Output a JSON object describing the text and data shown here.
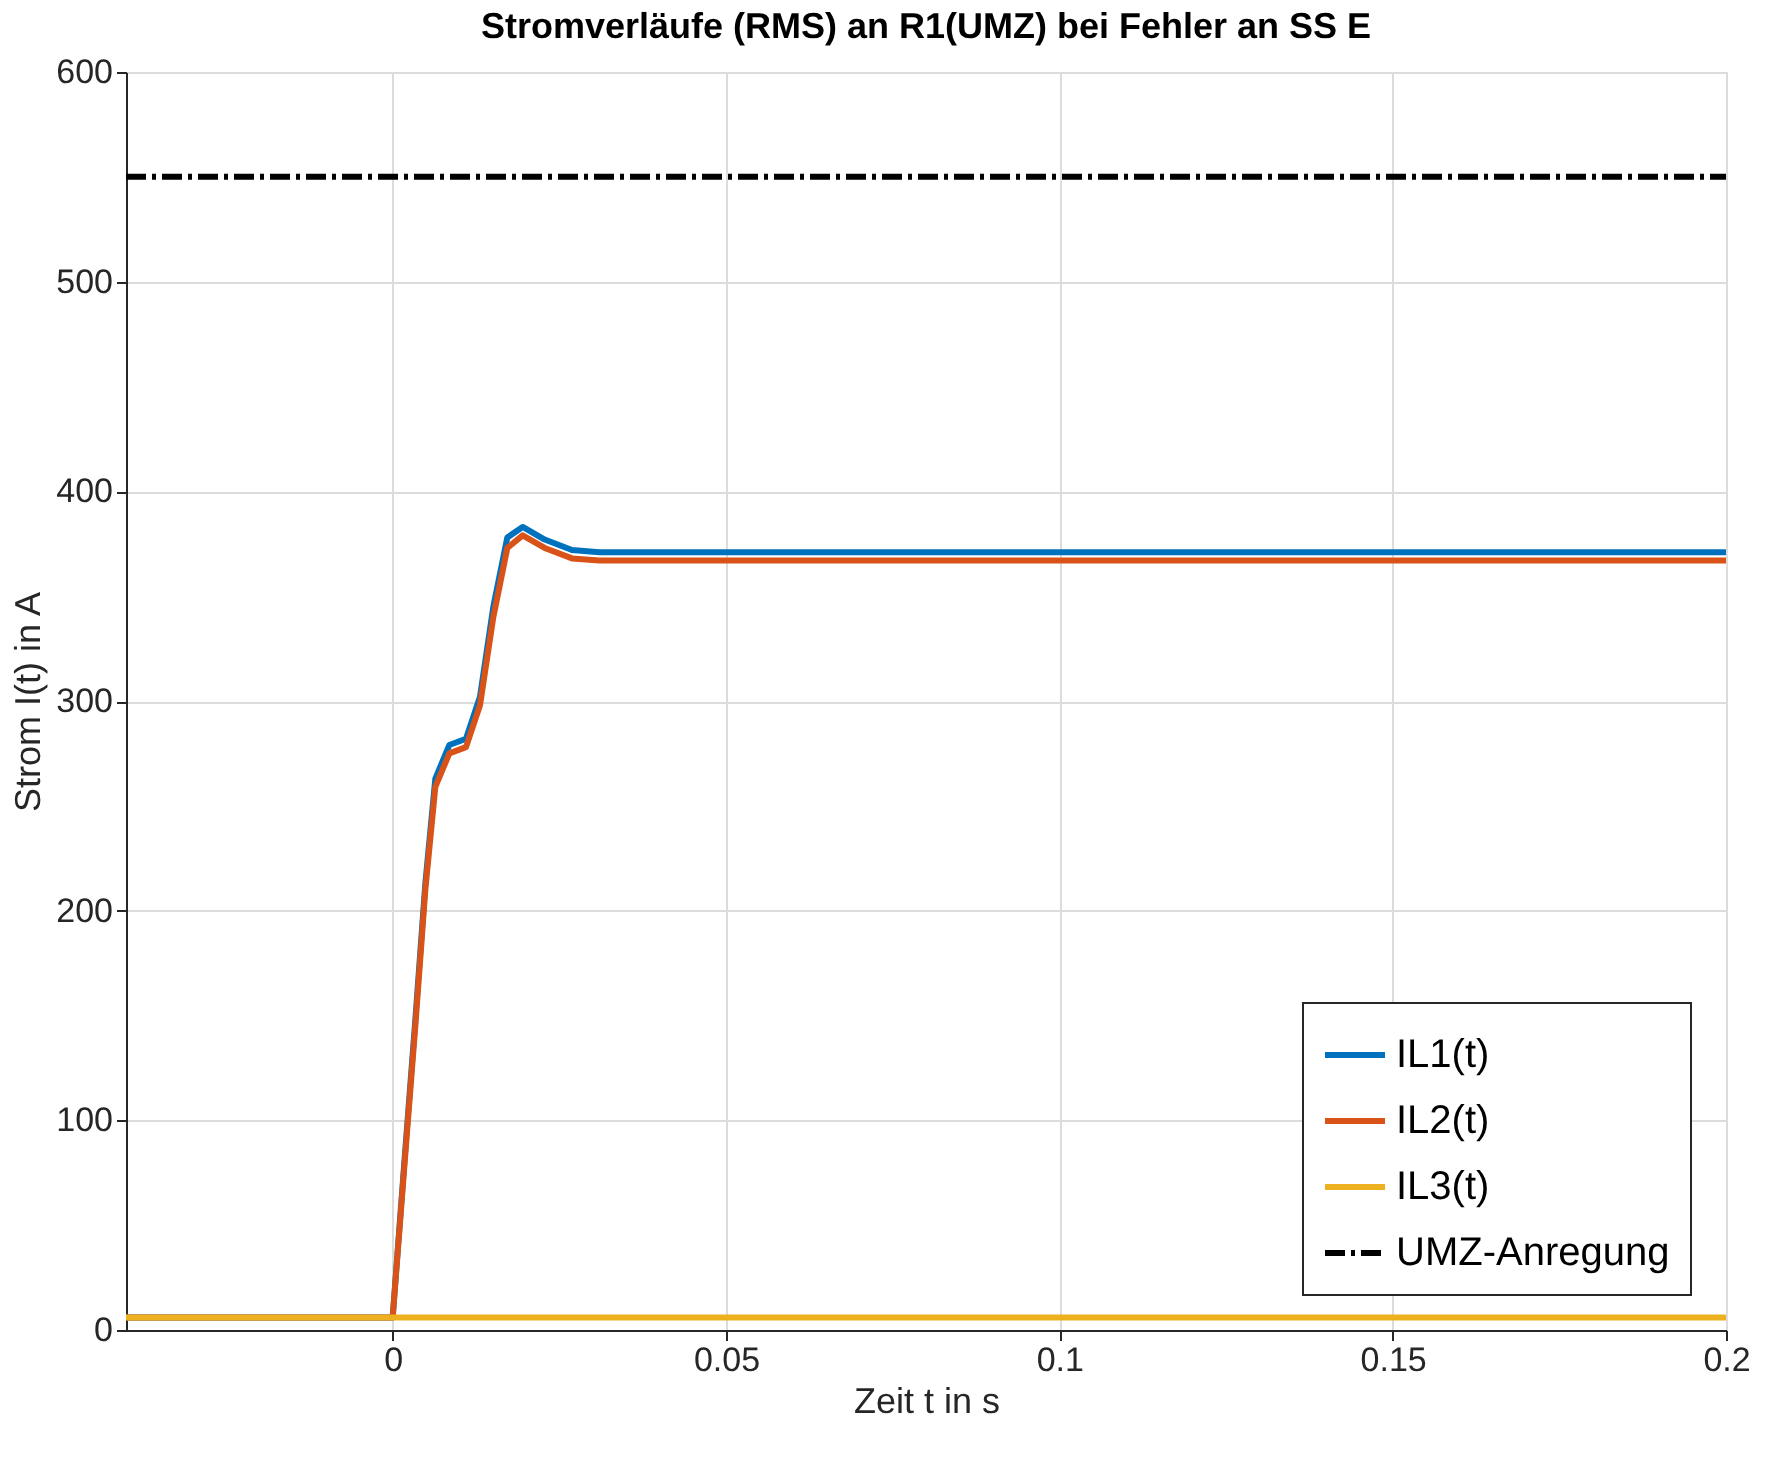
{
  "chart_data": {
    "type": "line",
    "title": "Stromverläufe (RMS) an R1(UMZ) bei Fehler an SS E",
    "xlabel": "Zeit t in s",
    "ylabel": "Strom I(t) in A",
    "xlim": [
      -0.04,
      0.2
    ],
    "xticks": [
      0,
      0.05,
      0.1,
      0.15,
      0.2
    ],
    "ylim": [
      0,
      600
    ],
    "yticks": [
      0,
      100,
      200,
      300,
      400,
      500,
      600
    ],
    "grid": true,
    "legend": "bottom right",
    "line_style": "solid",
    "marker": "none",
    "series": [
      {
        "name": "IL1(t)",
        "color": "#0072bd",
        "x": [
          -0.04,
          0,
          0.0018,
          0.0034,
          0.0049,
          0.0064,
          0.0085,
          0.011,
          0.0131,
          0.0151,
          0.0172,
          0.0195,
          0.0228,
          0.0269,
          0.031,
          0.2
        ],
        "values": [
          6,
          6,
          82,
          148,
          213,
          263,
          279,
          282,
          302,
          345,
          378,
          383,
          377,
          372,
          371,
          371
        ]
      },
      {
        "name": "IL2(t)",
        "color": "#d95319",
        "x": [
          -0.04,
          0,
          0.0018,
          0.0034,
          0.0049,
          0.0064,
          0.0085,
          0.011,
          0.0131,
          0.0151,
          0.0172,
          0.0195,
          0.0228,
          0.0269,
          0.031,
          0.2
        ],
        "values": [
          6,
          6,
          80,
          145,
          210,
          259,
          275,
          278,
          298,
          340,
          373,
          379,
          373,
          368,
          367,
          367
        ]
      },
      {
        "name": "IL3(t)",
        "color": "#edb120",
        "x": [
          -0.04,
          0.2
        ],
        "values": [
          6,
          6
        ]
      },
      {
        "name": "UMZ-Anregung",
        "color": "#000000",
        "x": [
          -0.04,
          0.2
        ],
        "values": [
          550,
          550
        ],
        "line_style": "dashdot"
      }
    ]
  }
}
